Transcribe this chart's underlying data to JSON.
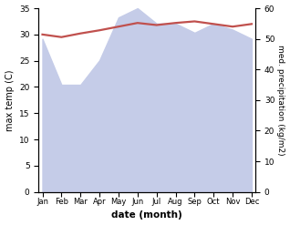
{
  "months": [
    "Jan",
    "Feb",
    "Mar",
    "Apr",
    "May",
    "Jun",
    "Jul",
    "Aug",
    "Sep",
    "Oct",
    "Nov",
    "Dec"
  ],
  "month_indices": [
    0,
    1,
    2,
    3,
    4,
    5,
    6,
    7,
    8,
    9,
    10,
    11
  ],
  "max_temp": [
    30.0,
    29.5,
    30.2,
    30.8,
    31.5,
    32.2,
    31.8,
    32.2,
    32.5,
    32.0,
    31.5,
    32.0
  ],
  "precipitation": [
    50,
    35,
    35,
    43,
    57,
    60,
    55,
    55,
    52,
    55,
    53,
    50
  ],
  "temp_ylim": [
    0,
    35
  ],
  "precip_ylim": [
    0,
    60
  ],
  "temp_color": "#c0504d",
  "precip_fill_color": "#c5cce8",
  "xlabel": "date (month)",
  "ylabel_left": "max temp (C)",
  "ylabel_right": "med. precipitation (kg/m2)",
  "temp_linewidth": 1.6,
  "figure_bg": "#ffffff"
}
